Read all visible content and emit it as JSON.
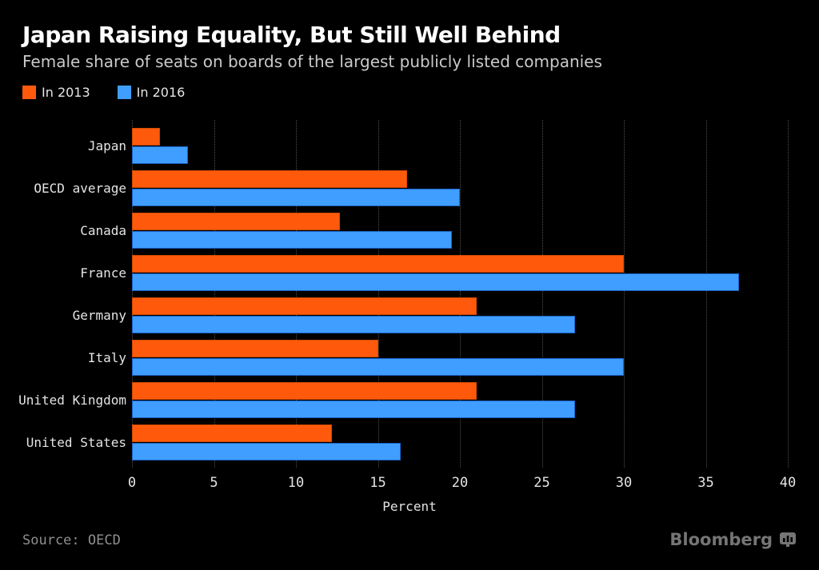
{
  "title": "Japan Raising Equality, But Still Well Behind",
  "subtitle": "Female share of seats on boards of the largest publicly listed companies",
  "legend": {
    "items": [
      {
        "label": "In 2013",
        "color": "#ff5a0c"
      },
      {
        "label": "In 2016",
        "color": "#3f9eff"
      }
    ]
  },
  "chart_data": {
    "type": "bar",
    "orientation": "horizontal",
    "title": "Japan Raising Equality, But Still Well Behind",
    "subtitle": "Female share of seats on boards of the largest publicly listed companies",
    "categories": [
      "Japan",
      "OECD average",
      "Canada",
      "France",
      "Germany",
      "Italy",
      "United Kingdom",
      "United States"
    ],
    "series": [
      {
        "name": "In 2013",
        "color": "#ff5a0c",
        "border_color": "#d14a00",
        "values": [
          1.7,
          16.8,
          12.7,
          30,
          21,
          15,
          21,
          12.2
        ]
      },
      {
        "name": "In 2016",
        "color": "#3f9eff",
        "border_color": "#1c64c4",
        "values": [
          3.4,
          20,
          19.5,
          37,
          27,
          30,
          27,
          16.4
        ]
      }
    ],
    "xlabel": "Percent",
    "ylabel": "",
    "xlim": [
      0,
      40
    ],
    "xticks": [
      0,
      5,
      10,
      15,
      20,
      25,
      30,
      35,
      40
    ],
    "grid": "vertical-dotted",
    "legend_position": "top-left",
    "background": "#000000"
  },
  "footer": {
    "source": "Source: OECD",
    "brand": "Bloomberg"
  },
  "colors": {
    "background": "#000000",
    "title_text": "#ffffff",
    "subtitle_text": "#c9c9c9",
    "axis_text": "#e4e4e4",
    "gridline": "#4e4e4e",
    "source_text": "#8f8f8f",
    "brand_text": "#757575"
  }
}
